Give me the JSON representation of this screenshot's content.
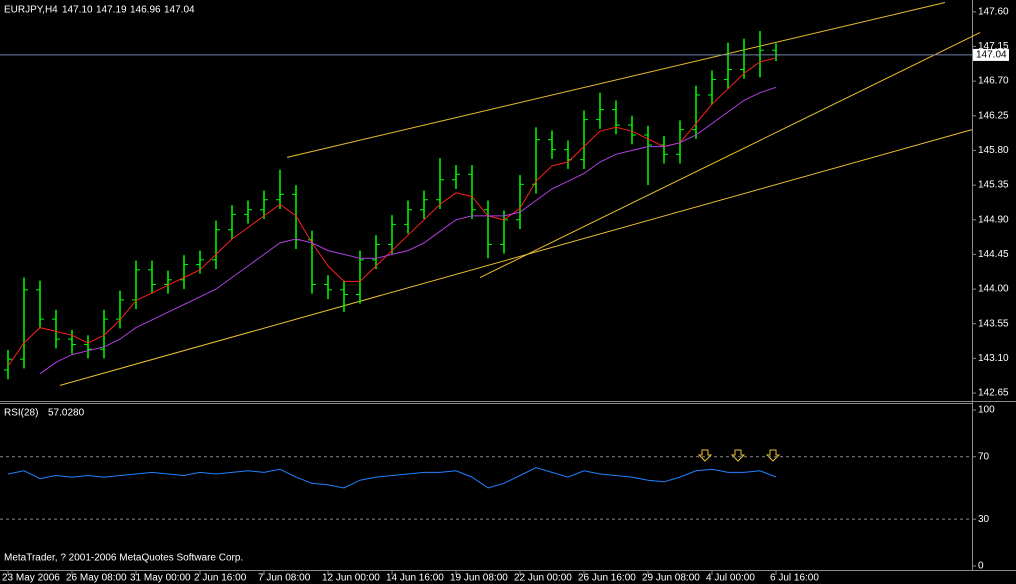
{
  "chart_data": [
    {
      "type": "ohlc",
      "title": "EURJPY,H4",
      "quote_labels": [
        "147.10",
        "147.19",
        "146.96",
        "147.04"
      ],
      "color": "#00ff00",
      "open": [
        142.95,
        143.09,
        143.99,
        143.61,
        143.35,
        143.28,
        143.22,
        143.61,
        143.86,
        144.25,
        144.06,
        144.12,
        144.32,
        144.38,
        144.77,
        144.97,
        145.03,
        145.16,
        145.23,
        144.64,
        144.06,
        143.99,
        143.93,
        144.38,
        144.58,
        144.84,
        145.03,
        145.16,
        145.42,
        145.49,
        145.03,
        144.58,
        144.9,
        145.36,
        145.94,
        145.81,
        145.68,
        146.2,
        146.33,
        146.13,
        146.0,
        145.87,
        145.75,
        146.07,
        146.52,
        146.72,
        146.85,
        147.04,
        147.1
      ],
      "high": [
        143.21,
        144.15,
        144.11,
        143.73,
        143.47,
        143.4,
        143.73,
        143.98,
        144.37,
        144.37,
        144.24,
        144.44,
        144.5,
        144.89,
        145.09,
        145.15,
        145.28,
        145.55,
        145.35,
        144.76,
        144.18,
        144.11,
        144.5,
        144.7,
        144.96,
        145.15,
        145.28,
        145.7,
        145.61,
        145.61,
        145.15,
        145.02,
        145.48,
        146.1,
        146.06,
        145.93,
        146.32,
        146.55,
        146.45,
        146.25,
        146.12,
        145.99,
        146.19,
        146.64,
        146.84,
        147.2,
        147.25,
        147.35,
        147.19
      ],
      "low": [
        142.83,
        142.97,
        143.49,
        143.23,
        143.16,
        143.1,
        143.1,
        143.49,
        143.74,
        143.94,
        143.94,
        144.0,
        144.2,
        144.26,
        144.65,
        144.85,
        144.91,
        145.04,
        144.52,
        143.94,
        143.87,
        143.7,
        143.81,
        144.26,
        144.46,
        144.72,
        144.91,
        145.04,
        145.3,
        144.91,
        144.4,
        144.46,
        144.78,
        145.24,
        145.69,
        145.56,
        145.56,
        146.08,
        146.01,
        145.88,
        145.35,
        145.63,
        145.63,
        145.95,
        146.4,
        146.6,
        146.73,
        146.75,
        146.96
      ],
      "close": [
        143.09,
        143.99,
        143.61,
        143.35,
        143.28,
        143.22,
        143.61,
        143.86,
        144.25,
        144.06,
        144.12,
        144.32,
        144.38,
        144.77,
        144.97,
        145.03,
        145.16,
        145.23,
        144.64,
        144.06,
        143.99,
        143.93,
        144.38,
        144.58,
        144.84,
        145.03,
        145.16,
        145.42,
        145.49,
        145.03,
        144.58,
        144.9,
        145.36,
        145.94,
        145.81,
        145.68,
        146.2,
        146.33,
        146.13,
        146.0,
        145.87,
        145.75,
        146.07,
        146.52,
        146.72,
        146.85,
        147.04,
        147.1,
        147.04
      ],
      "overlays": [
        {
          "color": "#ff2020",
          "values": [
            143.0,
            143.3,
            143.5,
            143.45,
            143.4,
            143.3,
            143.4,
            143.6,
            143.85,
            143.95,
            144.05,
            144.15,
            144.25,
            144.45,
            144.65,
            144.8,
            144.95,
            145.1,
            144.95,
            144.6,
            144.3,
            144.1,
            144.1,
            144.3,
            144.5,
            144.7,
            144.9,
            145.1,
            145.25,
            145.2,
            144.95,
            144.9,
            145.05,
            145.4,
            145.6,
            145.65,
            145.85,
            146.05,
            146.1,
            146.05,
            145.95,
            145.85,
            145.9,
            146.15,
            146.4,
            146.6,
            146.8,
            146.95,
            147.0
          ]
        },
        {
          "color": "#b040e0",
          "values": [
            null,
            null,
            142.9,
            143.05,
            143.15,
            143.2,
            143.25,
            143.35,
            143.5,
            143.6,
            143.7,
            143.8,
            143.9,
            144.0,
            144.15,
            144.3,
            144.45,
            144.6,
            144.65,
            144.6,
            144.5,
            144.45,
            144.4,
            144.4,
            144.45,
            144.5,
            144.6,
            144.75,
            144.9,
            144.95,
            144.95,
            144.95,
            145.0,
            145.15,
            145.3,
            145.4,
            145.5,
            145.65,
            145.75,
            145.8,
            145.85,
            145.85,
            145.9,
            146.0,
            146.15,
            146.3,
            146.45,
            146.55,
            146.62
          ]
        }
      ],
      "trendlines": [
        {
          "color": "#e8c030",
          "x": [
            17.44,
            58.56
          ],
          "y": [
            145.71,
            147.72
          ]
        },
        {
          "color": "#e8c030",
          "x": [
            3.25,
            60.25
          ],
          "y": [
            142.75,
            146.07
          ]
        },
        {
          "color": "#e8c030",
          "x": [
            29.5,
            60.75
          ],
          "y": [
            144.15,
            147.33
          ]
        }
      ],
      "last_price": {
        "value": 147.04,
        "label": "147.04"
      },
      "xlim": [
        -0.5,
        60.25
      ],
      "xticks": [
        {
          "value": 0,
          "label": "23 May 2006"
        },
        {
          "value": 4,
          "label": "26 May 08:00"
        },
        {
          "value": 8,
          "label": "31 May 00:00"
        },
        {
          "value": 12,
          "label": "2 Jun 16:00"
        },
        {
          "value": 16,
          "label": "7 Jun 08:00"
        },
        {
          "value": 20,
          "label": "12 Jun 00:00"
        },
        {
          "value": 24,
          "label": "14 Jun 16:00"
        },
        {
          "value": 28,
          "label": "19 Jun 08:00"
        },
        {
          "value": 32,
          "label": "22 Jun 00:00"
        },
        {
          "value": 36,
          "label": "26 Jun 16:00"
        },
        {
          "value": 40,
          "label": "29 Jun 08:00"
        },
        {
          "value": 44,
          "label": "4 Jul 00:00"
        },
        {
          "value": 48,
          "label": "6 Jul 16:00"
        }
      ],
      "ylim": [
        142.56,
        147.74
      ],
      "yticks": [
        {
          "value": 147.6,
          "label": "147.60"
        },
        147.15,
        {
          "value": 146.7,
          "label": "146.70"
        },
        146.25,
        {
          "value": 145.8,
          "label": "145.80"
        },
        145.35,
        {
          "value": 144.9,
          "label": "144.90"
        },
        144.45,
        {
          "value": 144.0,
          "label": "144.00"
        },
        143.55,
        {
          "value": 143.1,
          "label": "143.10"
        },
        142.65
      ]
    },
    {
      "type": "line",
      "title": "RSI(28)",
      "value_label": "57.0280",
      "color": "#2080ff",
      "values": [
        59,
        61,
        56,
        58,
        57,
        58,
        57,
        58,
        59,
        60,
        59,
        58,
        60,
        59,
        60,
        61,
        60,
        62,
        57,
        53,
        52,
        50,
        55,
        57,
        58,
        59,
        60,
        60,
        61,
        57,
        50,
        53,
        58,
        63,
        60,
        57,
        61,
        59,
        58,
        57,
        55,
        54,
        57,
        61,
        62,
        60,
        60,
        61,
        57.03
      ],
      "xlim": [
        -0.5,
        60.25
      ],
      "ylim": [
        -9,
        104.5
      ],
      "yticks": [
        100,
        70,
        30,
        0
      ],
      "grid": true
    }
  ],
  "footer": "MetaTrader, ? 2001-2006 MetaQuotes Software Corp."
}
